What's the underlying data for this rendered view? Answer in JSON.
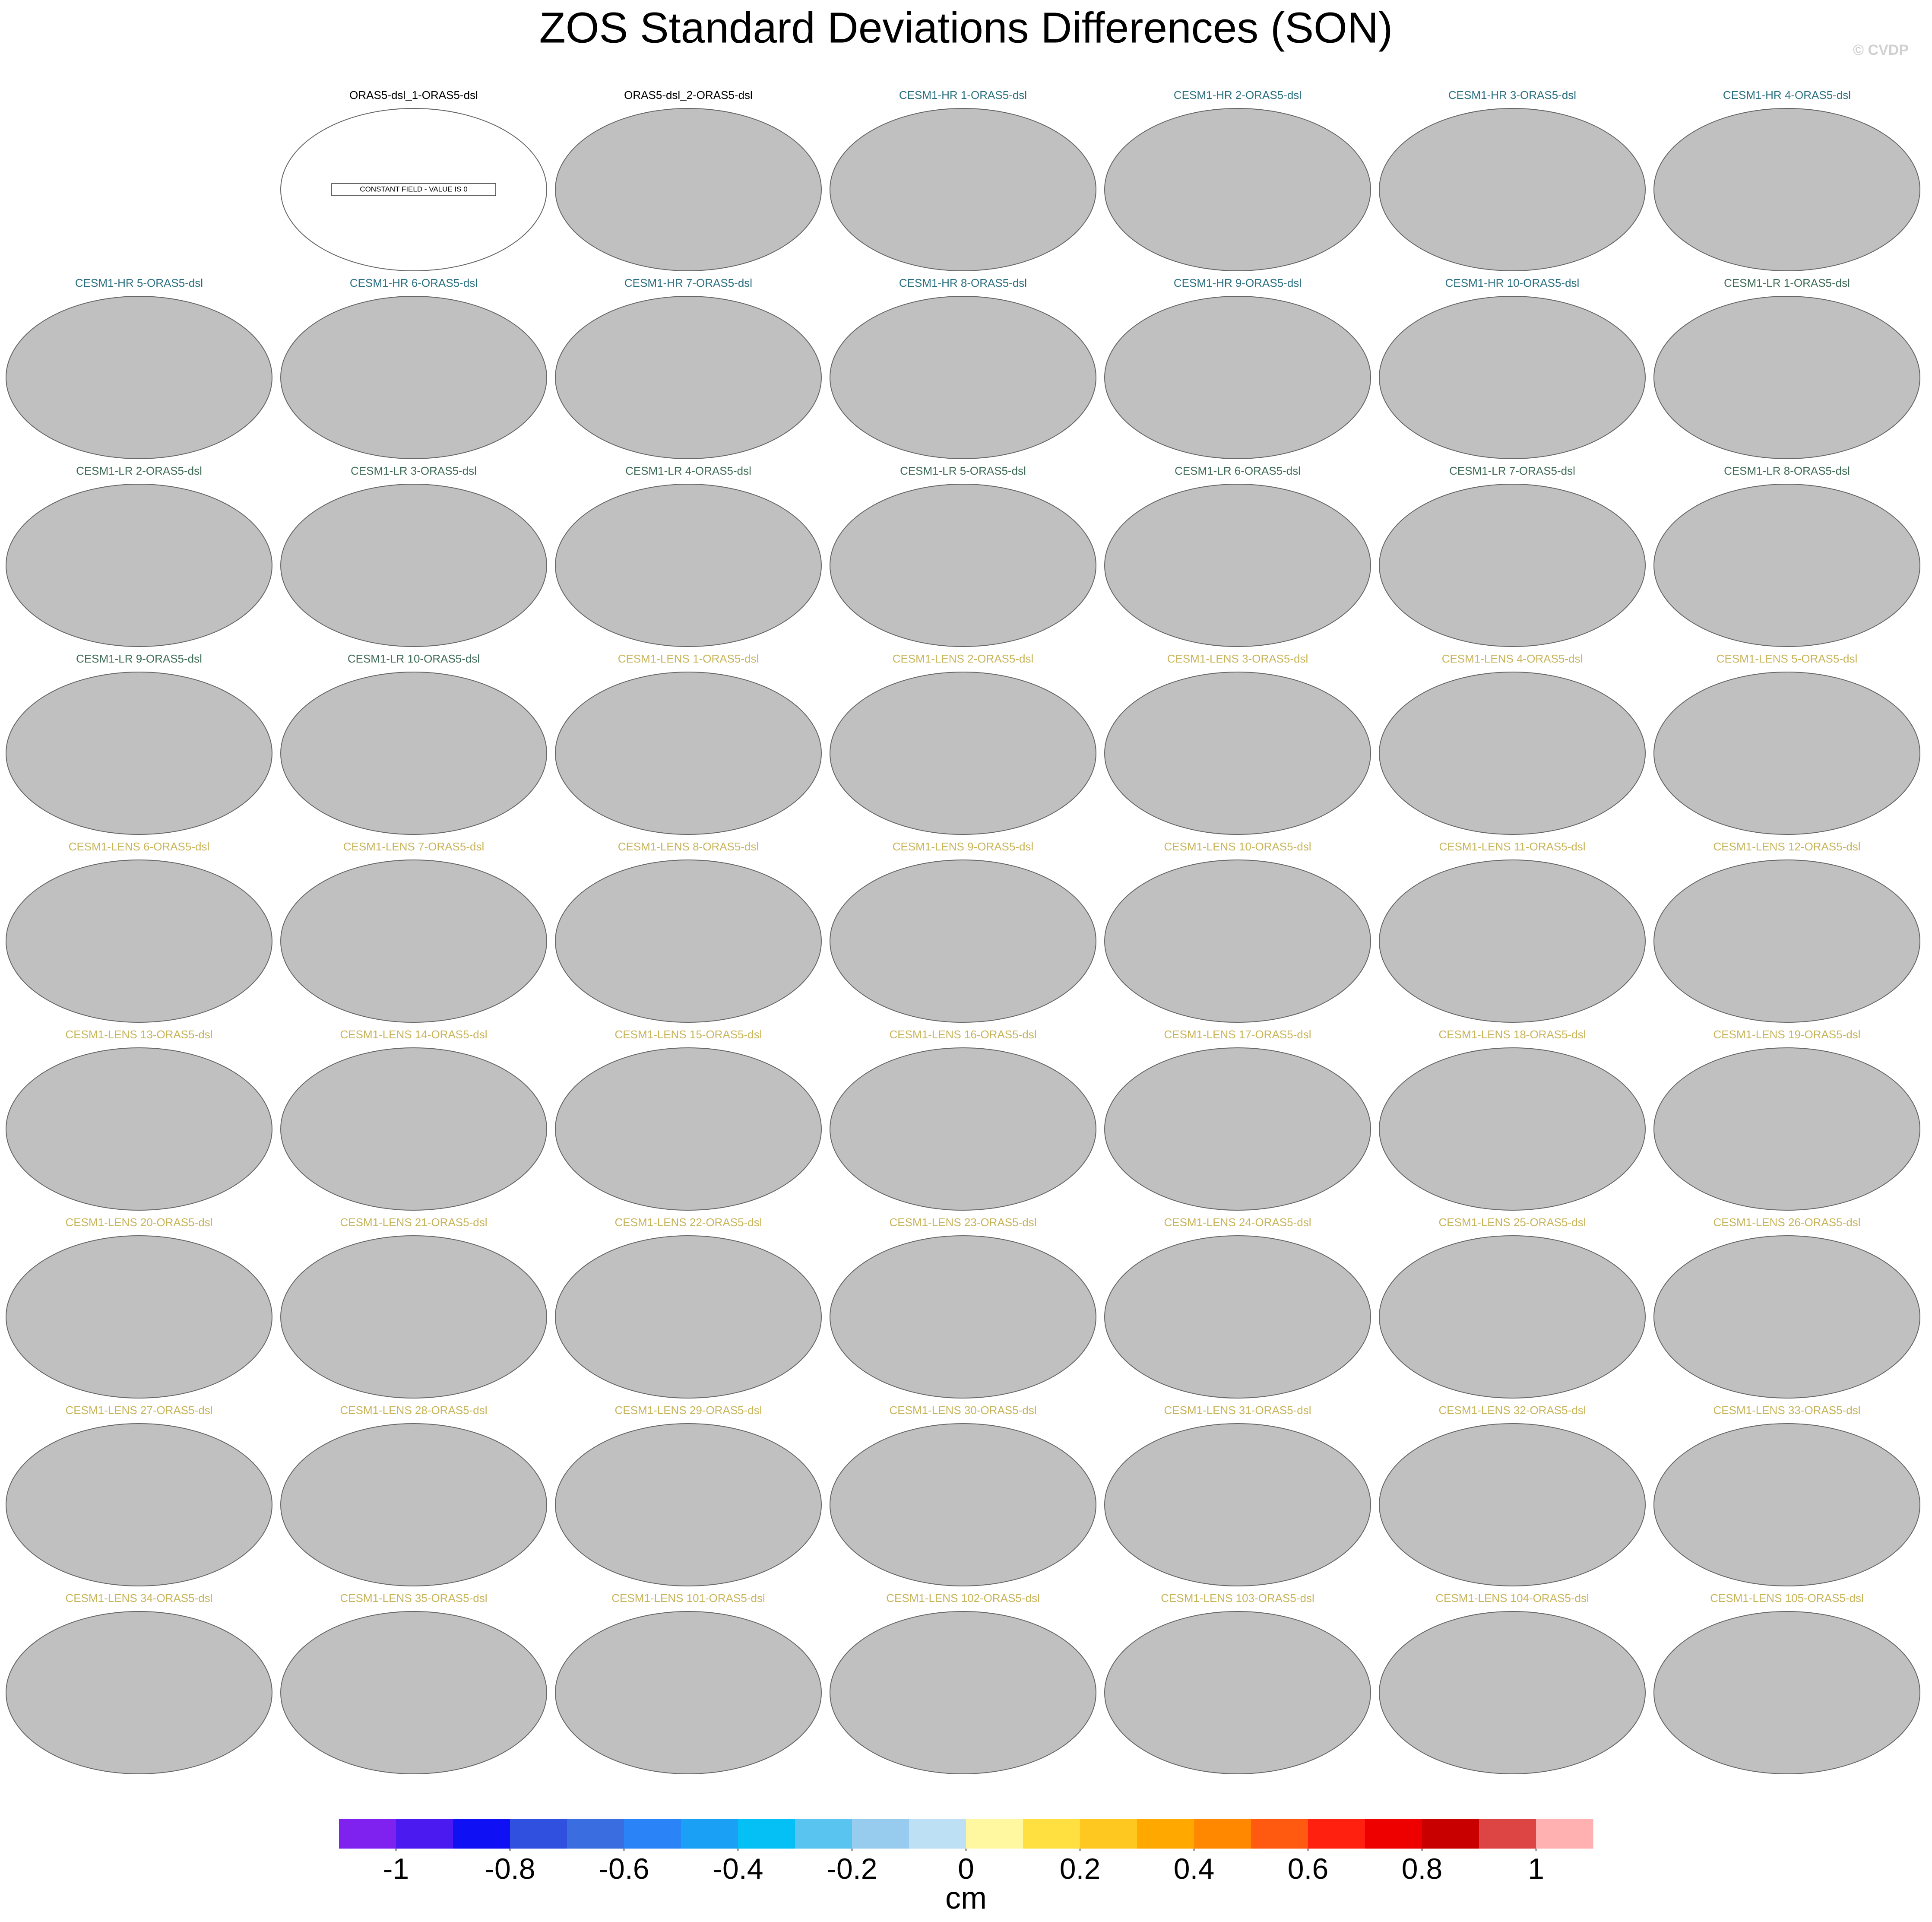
{
  "chart_data": {
    "type": "map",
    "title": "ZOS Standard Deviations Differences (SON)",
    "watermark": "© CVDP",
    "annotation": "CONSTANT FIELD - VALUE IS 0",
    "panels": [
      {
        "title": "ORAS5-dsl_1-ORAS5-dsl",
        "color": "#000000"
      },
      {
        "title": "ORAS5-dsl_2-ORAS5-dsl",
        "color": "#000000"
      },
      {
        "title": "CESM1-HR 1-ORAS5-dsl",
        "color": "#2a6f80"
      },
      {
        "title": "CESM1-HR 2-ORAS5-dsl",
        "color": "#2a6f80"
      },
      {
        "title": "CESM1-HR 3-ORAS5-dsl",
        "color": "#2a6f80"
      },
      {
        "title": "CESM1-HR 4-ORAS5-dsl",
        "color": "#2a6f80"
      },
      {
        "title": "CESM1-HR 5-ORAS5-dsl",
        "color": "#2a6f80"
      },
      {
        "title": "CESM1-HR 6-ORAS5-dsl",
        "color": "#2a6f80"
      },
      {
        "title": "CESM1-HR 7-ORAS5-dsl",
        "color": "#2a6f80"
      },
      {
        "title": "CESM1-HR 8-ORAS5-dsl",
        "color": "#2a6f80"
      },
      {
        "title": "CESM1-HR 9-ORAS5-dsl",
        "color": "#2a6f80"
      },
      {
        "title": "CESM1-HR 10-ORAS5-dsl",
        "color": "#2a6f80"
      },
      {
        "title": "CESM1-LR 1-ORAS5-dsl",
        "color": "#3d6b55"
      },
      {
        "title": "CESM1-LR 2-ORAS5-dsl",
        "color": "#3d6b55"
      },
      {
        "title": "CESM1-LR 3-ORAS5-dsl",
        "color": "#3d6b55"
      },
      {
        "title": "CESM1-LR 4-ORAS5-dsl",
        "color": "#3d6b55"
      },
      {
        "title": "CESM1-LR 5-ORAS5-dsl",
        "color": "#3d6b55"
      },
      {
        "title": "CESM1-LR 6-ORAS5-dsl",
        "color": "#3d6b55"
      },
      {
        "title": "CESM1-LR 7-ORAS5-dsl",
        "color": "#3d6b55"
      },
      {
        "title": "CESM1-LR 8-ORAS5-dsl",
        "color": "#3d6b55"
      },
      {
        "title": "CESM1-LR 9-ORAS5-dsl",
        "color": "#3d6b55"
      },
      {
        "title": "CESM1-LR 10-ORAS5-dsl",
        "color": "#3d6b55"
      },
      {
        "title": "CESM1-LENS 1-ORAS5-dsl",
        "color": "#c8b45a"
      },
      {
        "title": "CESM1-LENS 2-ORAS5-dsl",
        "color": "#c8b45a"
      },
      {
        "title": "CESM1-LENS 3-ORAS5-dsl",
        "color": "#c8b45a"
      },
      {
        "title": "CESM1-LENS 4-ORAS5-dsl",
        "color": "#c8b45a"
      },
      {
        "title": "CESM1-LENS 5-ORAS5-dsl",
        "color": "#c8b45a"
      },
      {
        "title": "CESM1-LENS 6-ORAS5-dsl",
        "color": "#c8b45a"
      },
      {
        "title": "CESM1-LENS 7-ORAS5-dsl",
        "color": "#c8b45a"
      },
      {
        "title": "CESM1-LENS 8-ORAS5-dsl",
        "color": "#c8b45a"
      },
      {
        "title": "CESM1-LENS 9-ORAS5-dsl",
        "color": "#c8b45a"
      },
      {
        "title": "CESM1-LENS 10-ORAS5-dsl",
        "color": "#c8b45a"
      },
      {
        "title": "CESM1-LENS 11-ORAS5-dsl",
        "color": "#c8b45a"
      },
      {
        "title": "CESM1-LENS 12-ORAS5-dsl",
        "color": "#c8b45a"
      },
      {
        "title": "CESM1-LENS 13-ORAS5-dsl",
        "color": "#c8b45a"
      },
      {
        "title": "CESM1-LENS 14-ORAS5-dsl",
        "color": "#c8b45a"
      },
      {
        "title": "CESM1-LENS 15-ORAS5-dsl",
        "color": "#c8b45a"
      },
      {
        "title": "CESM1-LENS 16-ORAS5-dsl",
        "color": "#c8b45a"
      },
      {
        "title": "CESM1-LENS 17-ORAS5-dsl",
        "color": "#c8b45a"
      },
      {
        "title": "CESM1-LENS 18-ORAS5-dsl",
        "color": "#c8b45a"
      },
      {
        "title": "CESM1-LENS 19-ORAS5-dsl",
        "color": "#c8b45a"
      },
      {
        "title": "CESM1-LENS 20-ORAS5-dsl",
        "color": "#c8b45a"
      },
      {
        "title": "CESM1-LENS 21-ORAS5-dsl",
        "color": "#c8b45a"
      },
      {
        "title": "CESM1-LENS 22-ORAS5-dsl",
        "color": "#c8b45a"
      },
      {
        "title": "CESM1-LENS 23-ORAS5-dsl",
        "color": "#c8b45a"
      },
      {
        "title": "CESM1-LENS 24-ORAS5-dsl",
        "color": "#c8b45a"
      },
      {
        "title": "CESM1-LENS 25-ORAS5-dsl",
        "color": "#c8b45a"
      },
      {
        "title": "CESM1-LENS 26-ORAS5-dsl",
        "color": "#c8b45a"
      },
      {
        "title": "CESM1-LENS 27-ORAS5-dsl",
        "color": "#c8b45a"
      },
      {
        "title": "CESM1-LENS 28-ORAS5-dsl",
        "color": "#c8b45a"
      },
      {
        "title": "CESM1-LENS 29-ORAS5-dsl",
        "color": "#c8b45a"
      },
      {
        "title": "CESM1-LENS 30-ORAS5-dsl",
        "color": "#c8b45a"
      },
      {
        "title": "CESM1-LENS 31-ORAS5-dsl",
        "color": "#c8b45a"
      },
      {
        "title": "CESM1-LENS 32-ORAS5-dsl",
        "color": "#c8b45a"
      },
      {
        "title": "CESM1-LENS 33-ORAS5-dsl",
        "color": "#c8b45a"
      },
      {
        "title": "CESM1-LENS 34-ORAS5-dsl",
        "color": "#c8b45a"
      },
      {
        "title": "CESM1-LENS 35-ORAS5-dsl",
        "color": "#c8b45a"
      },
      {
        "title": "CESM1-LENS 101-ORAS5-dsl",
        "color": "#c8b45a"
      },
      {
        "title": "CESM1-LENS 102-ORAS5-dsl",
        "color": "#c8b45a"
      },
      {
        "title": "CESM1-LENS 103-ORAS5-dsl",
        "color": "#c8b45a"
      },
      {
        "title": "CESM1-LENS 104-ORAS5-dsl",
        "color": "#c8b45a"
      },
      {
        "title": "CESM1-LENS 105-ORAS5-dsl",
        "color": "#c8b45a"
      }
    ],
    "colorbar": {
      "colors": [
        "#7f22f0",
        "#4a1af0",
        "#1010f5",
        "#3050e0",
        "#3a6ee0",
        "#2b84f7",
        "#1aa0f5",
        "#05c0f5",
        "#5ac4f0",
        "#98ccee",
        "#bde0f5",
        "#fff8a0",
        "#ffe040",
        "#ffc820",
        "#ffa800",
        "#ff8800",
        "#ff5a10",
        "#ff2010",
        "#ee0000",
        "#c80000",
        "#dd4444",
        "#ffb0b0"
      ],
      "lim": [
        -1.1,
        1.1
      ],
      "ticks": [
        -1,
        -0.8,
        -0.6,
        -0.4,
        -0.2,
        0,
        0.2,
        0.4,
        0.6,
        0.8,
        1
      ],
      "label": "cm"
    }
  }
}
